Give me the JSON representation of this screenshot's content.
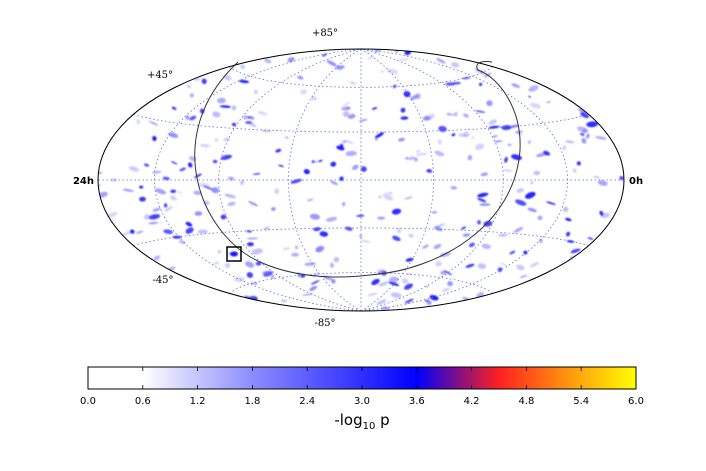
{
  "chart_data": {
    "type": "heatmap",
    "projection": "Hammer-Aitoff all-sky map",
    "grid": true,
    "labels": {
      "top": "+85°",
      "upper_left": "+45°",
      "left": "24h",
      "right": "0h",
      "lower_left": "-45°",
      "bottom": "-85°"
    },
    "colorbar": {
      "label_main": "-log",
      "label_sub": "10",
      "label_tail": " p",
      "range": [
        0.0,
        6.0
      ],
      "ticks": [
        "0.0",
        "0.6",
        "1.2",
        "1.8",
        "2.4",
        "3.0",
        "3.6",
        "4.2",
        "4.8",
        "5.4",
        "6.0"
      ],
      "colors": [
        "#ffffff",
        "#0000ff",
        "#ff0000",
        "#ffff00"
      ],
      "placement": "bottom"
    },
    "highlight_box": "small black square marking a hotspot in the lower-left region",
    "colors": {
      "hotspot": "#2a2aff",
      "boundary": "#333333",
      "grid": "#5a6ee0"
    }
  }
}
